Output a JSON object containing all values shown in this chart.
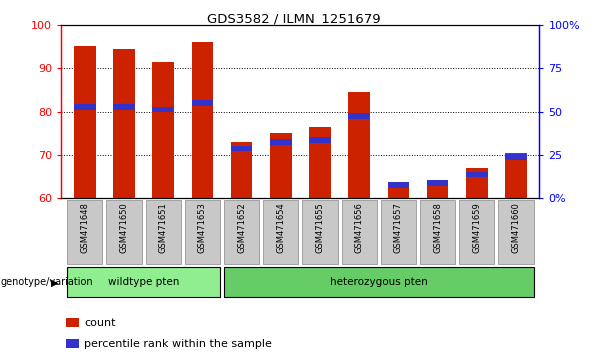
{
  "title": "GDS3582 / ILMN_1251679",
  "categories": [
    "GSM471648",
    "GSM471650",
    "GSM471651",
    "GSM471653",
    "GSM471652",
    "GSM471654",
    "GSM471655",
    "GSM471656",
    "GSM471657",
    "GSM471658",
    "GSM471659",
    "GSM471660"
  ],
  "red_values": [
    95.0,
    94.5,
    91.5,
    96.0,
    73.0,
    75.0,
    76.5,
    84.5,
    63.5,
    64.0,
    67.0,
    70.5
  ],
  "blue_values": [
    81.0,
    81.0,
    80.5,
    82.0,
    71.5,
    73.0,
    73.5,
    79.0,
    63.0,
    63.5,
    65.5,
    69.5
  ],
  "ymin": 60,
  "ymax": 100,
  "right_yticks": [
    0,
    25,
    50,
    75,
    100
  ],
  "right_yticklabels": [
    "0%",
    "25",
    "50",
    "75",
    "100%"
  ],
  "left_yticks": [
    60,
    70,
    80,
    90,
    100
  ],
  "groups": [
    {
      "label": "wildtype pten",
      "start": 0,
      "end": 3,
      "color": "#90EE90"
    },
    {
      "label": "heterozygous pten",
      "start": 4,
      "end": 11,
      "color": "#66CC66"
    }
  ],
  "group_label": "genotype/variation",
  "bar_color": "#CC2200",
  "blue_color": "#3333CC",
  "bar_width": 0.55,
  "tick_bg_color": "#C8C8C8",
  "legend_items": [
    "count",
    "percentile rank within the sample"
  ]
}
